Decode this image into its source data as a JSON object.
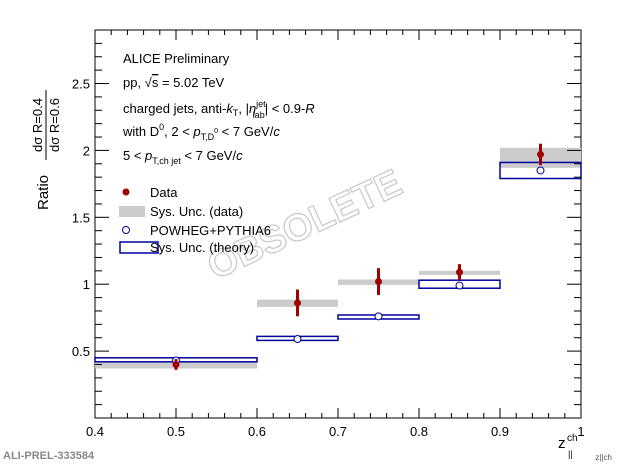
{
  "chart_data": {
    "type": "scatter",
    "title": "",
    "xlabel": "z||ch",
    "ylabel": "Ratio dσ R=0.4 / dσ R=0.6",
    "ylabel_parts": {
      "prefix": "Ratio",
      "num": "dσ  R=0.4",
      "den": "dσ  R=0.6"
    },
    "xlabel_parts": {
      "main": "z",
      "sup": "ch",
      "sub": "||"
    },
    "xlim": [
      0.4,
      1.0
    ],
    "ylim": [
      0.0,
      2.9
    ],
    "xticks": [
      "0.4",
      "0.5",
      "0.6",
      "0.7",
      "0.8",
      "0.9",
      "1"
    ],
    "xtick_values": [
      0.4,
      0.5,
      0.6,
      0.7,
      0.8,
      0.9,
      1.0
    ],
    "yticks": [
      "0.5",
      "1",
      "1.5",
      "2",
      "2.5"
    ],
    "ytick_values": [
      0.5,
      1,
      1.5,
      2,
      2.5
    ],
    "bins": [
      [
        0.4,
        0.6
      ],
      [
        0.6,
        0.7
      ],
      [
        0.7,
        0.8
      ],
      [
        0.8,
        0.9
      ],
      [
        0.9,
        1.0
      ]
    ],
    "series": [
      {
        "name": "Data",
        "x": [
          0.5,
          0.65,
          0.75,
          0.85,
          0.95
        ],
        "values": [
          0.4,
          0.86,
          1.02,
          1.09,
          1.97
        ],
        "stat_err": [
          0.04,
          0.1,
          0.1,
          0.06,
          0.08
        ],
        "color": "#a00000"
      },
      {
        "name": "Sys. Unc. (data)",
        "low": [
          0.37,
          0.83,
          0.995,
          1.07,
          1.87
        ],
        "high": [
          0.42,
          0.885,
          1.035,
          1.1,
          2.02
        ],
        "color": "#cccccc"
      },
      {
        "name": "POWHEG+PYTHIA6",
        "x": [
          0.5,
          0.65,
          0.75,
          0.85,
          0.95
        ],
        "values": [
          0.43,
          0.59,
          0.76,
          0.99,
          1.85
        ],
        "color": "#0000a0"
      },
      {
        "name": "Sys. Unc. (theory)",
        "low": [
          0.42,
          0.58,
          0.74,
          0.97,
          1.79
        ],
        "high": [
          0.45,
          0.61,
          0.77,
          1.03,
          1.91
        ],
        "color": "#0000a0"
      }
    ],
    "legend_placement": "left-middle",
    "annotations": {
      "experiment": "ALICE Preliminary",
      "energy": "pp, √s = 5.02 TeV",
      "jets": "charged jets, anti-kT, |ηjet lab| < 0.9-R",
      "d0": "with D0, 2 < pT,D0 < 7 GeV/c",
      "ptjet": "5 < pT,ch jet < 7 GeV/c",
      "watermark": "OBSOLETE",
      "id": "ALI-PREL-333584"
    }
  }
}
